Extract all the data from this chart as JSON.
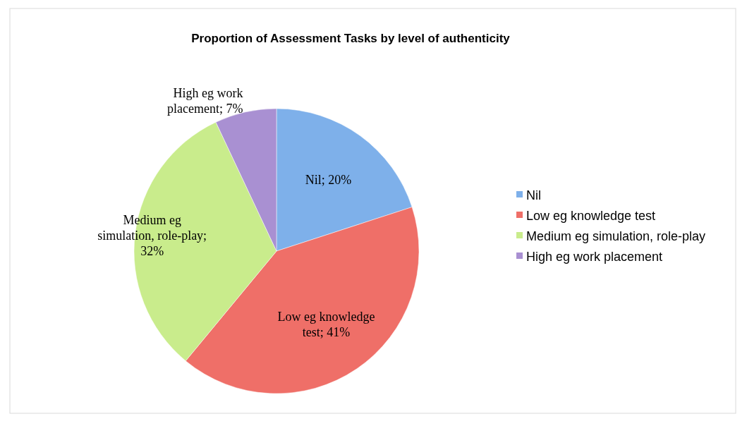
{
  "chart_data": {
    "type": "pie",
    "title": "Proportion of Assessment Tasks by level of authenticity",
    "categories": [
      "Nil",
      "Low eg knowledge test",
      "Medium eg simulation, role-play",
      "High eg work placement"
    ],
    "values": [
      20,
      41,
      32,
      7
    ],
    "colors": [
      "#7eb0ea",
      "#ef6f68",
      "#c9ec8c",
      "#a990d2"
    ],
    "value_labels": [
      "Nil; 20%",
      "Low eg knowledge\ntest; 41%",
      "Medium eg\nsimulation, role-play;\n32%",
      "High eg work\nplacement; 7%"
    ],
    "legend": "right"
  }
}
